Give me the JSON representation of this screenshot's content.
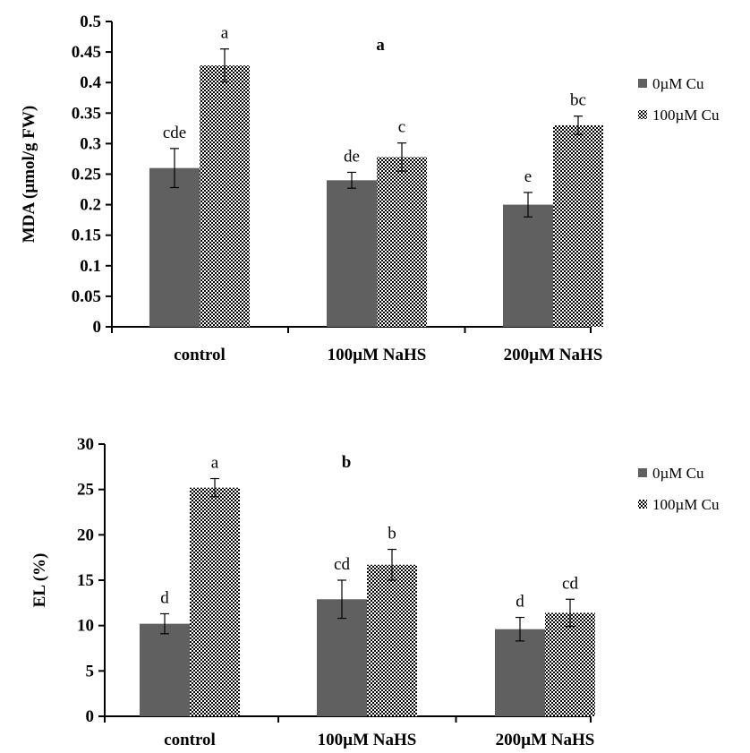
{
  "chart_data": [
    {
      "type": "bar",
      "title": "a",
      "xlabel": "",
      "ylabel": "MDA (µmol/g FW)",
      "ylim": [
        0,
        0.5
      ],
      "yticks": [
        "0",
        "0.05",
        "0.1",
        "0.15",
        "0.2",
        "0.25",
        "0.3",
        "0.35",
        "0.4",
        "0.45",
        "0.5"
      ],
      "categories": [
        "control",
        "100µM NaHS",
        "200µM NaHS"
      ],
      "grid": false,
      "legend_position": "right",
      "series": [
        {
          "name": "0µM Cu",
          "color": "#606060",
          "pattern": "solid",
          "values": [
            0.26,
            0.24,
            0.2
          ],
          "errors": [
            0.032,
            0.013,
            0.02
          ],
          "labels": [
            "cde",
            "de",
            "e"
          ]
        },
        {
          "name": "100µM Cu",
          "color": "#000000",
          "pattern": "checkered",
          "values": [
            0.428,
            0.278,
            0.33
          ],
          "errors": [
            0.027,
            0.023,
            0.015
          ],
          "labels": [
            "a",
            "c",
            "bc"
          ]
        }
      ]
    },
    {
      "type": "bar",
      "title": "b",
      "xlabel": "",
      "ylabel": "EL (%)",
      "ylim": [
        0,
        30
      ],
      "yticks": [
        "0",
        "5",
        "10",
        "15",
        "20",
        "25",
        "30"
      ],
      "categories": [
        "control",
        "100µM NaHS",
        "200µM NaHS"
      ],
      "grid": false,
      "legend_position": "right",
      "series": [
        {
          "name": "0µM Cu",
          "color": "#606060",
          "pattern": "solid",
          "values": [
            10.2,
            12.9,
            9.6
          ],
          "errors": [
            1.1,
            2.1,
            1.3
          ],
          "labels": [
            "d",
            "cd",
            "d"
          ]
        },
        {
          "name": "100µM Cu",
          "color": "#000000",
          "pattern": "checkered",
          "values": [
            25.2,
            16.7,
            11.4
          ],
          "errors": [
            1.0,
            1.7,
            1.5
          ],
          "labels": [
            "a",
            "b",
            "cd"
          ]
        }
      ]
    }
  ]
}
